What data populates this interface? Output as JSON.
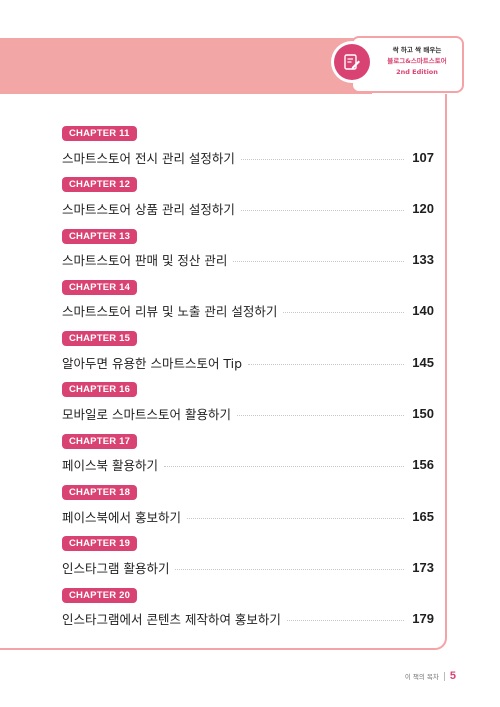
{
  "book": {
    "line1": "싹 하고 싹 배우는",
    "line2": "블로그&스마트스토어",
    "line3": "2nd Edition",
    "icon": "pencil-note-icon"
  },
  "toc": {
    "entries": [
      {
        "chapter": "CHAPTER 11",
        "title": "스마트스토어 전시 관리 설정하기",
        "page": "107"
      },
      {
        "chapter": "CHAPTER 12",
        "title": "스마트스토어 상품 관리 설정하기",
        "page": "120"
      },
      {
        "chapter": "CHAPTER 13",
        "title": "스마트스토어 판매 및 정산 관리",
        "page": "133"
      },
      {
        "chapter": "CHAPTER 14",
        "title": "스마트스토어 리뷰 및 노출 관리 설정하기",
        "page": "140"
      },
      {
        "chapter": "CHAPTER 15",
        "title": "알아두면 유용한 스마트스토어 Tip",
        "page": "145"
      },
      {
        "chapter": "CHAPTER 16",
        "title": "모바일로 스마트스토어 활용하기",
        "page": "150"
      },
      {
        "chapter": "CHAPTER 17",
        "title": "페이스북 활용하기",
        "page": "156"
      },
      {
        "chapter": "CHAPTER 18",
        "title": "페이스북에서 홍보하기",
        "page": "165"
      },
      {
        "chapter": "CHAPTER 19",
        "title": "인스타그램 활용하기",
        "page": "173"
      },
      {
        "chapter": "CHAPTER 20",
        "title": "인스타그램에서 콘텐츠 제작하여 홍보하기",
        "page": "179"
      }
    ]
  },
  "footer": {
    "label": "이 책의 목차",
    "page_number": "5"
  },
  "colors": {
    "accent": "#d94373",
    "band": "#f3a6a6",
    "frame": "#f4a3a7"
  }
}
